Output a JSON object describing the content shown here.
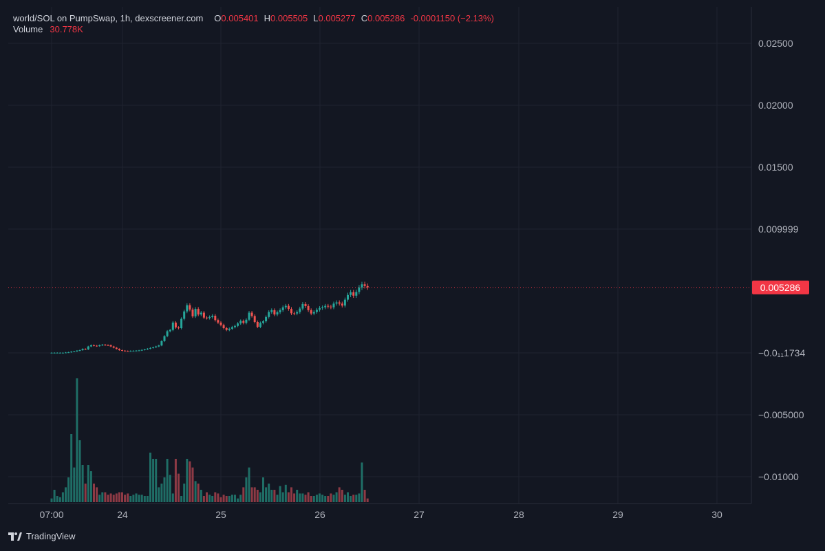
{
  "legend": {
    "symbol": "world/SOL on PumpSwap, 1h, dexscreener.com",
    "o_label": "O",
    "o_value": "0.005401",
    "h_label": "H",
    "h_value": "0.005505",
    "l_label": "L",
    "l_value": "0.005277",
    "c_label": "C",
    "c_value": "0.005286",
    "change": "-0.0001150 (−2.13%)",
    "volume_label": "Volume",
    "volume_value": "30.778K"
  },
  "footer": {
    "brand": "TradingView",
    "brand_icon": "tradingview-logo-icon"
  },
  "colors": {
    "background": "#131722",
    "grid": "#1f2330",
    "up": "#26a69a",
    "down": "#ef5350",
    "up_volume": "#1f6e66",
    "down_volume": "#8e3a45",
    "last_price_badge": "#f23645",
    "axis_text": "#b2b5be"
  },
  "chart_data": {
    "type": "candlestick",
    "pair": "world/SOL",
    "interval": "1h",
    "x_tick_labels": [
      "07:00",
      "24",
      "25",
      "26",
      "27",
      "28",
      "29",
      "30"
    ],
    "y_tick_labels": [
      "0.02500",
      "0.02000",
      "0.01500",
      "0.009999",
      "−0.0₁₁1734",
      "−0.005000",
      "−0.01000"
    ],
    "y_ticks": [
      0.025,
      0.02,
      0.015,
      0.01,
      0.0,
      -0.005,
      -0.01
    ],
    "ylim": [
      -0.0118,
      0.0268
    ],
    "last_price": 0.005286,
    "last_price_label": "0.005286",
    "grid": true,
    "x_start_hour_index_of_first_candle": 0,
    "close": [
      1e-05,
      1e-05,
      1e-05,
      1e-05,
      1e-05,
      3e-05,
      5e-05,
      0.0001,
      0.00012,
      0.00018,
      0.00022,
      0.00032,
      0.00028,
      0.00052,
      0.00062,
      0.00058,
      0.00055,
      0.00062,
      0.00066,
      0.00063,
      0.00062,
      0.00052,
      0.00042,
      0.00032,
      0.00022,
      0.00018,
      0.00015,
      0.00014,
      0.00016,
      0.00017,
      0.00018,
      0.0002,
      0.00024,
      0.00028,
      0.00034,
      0.0004,
      0.00045,
      0.00052,
      0.0006,
      0.00095,
      0.00135,
      0.00175,
      0.00185,
      0.00245,
      0.00205,
      0.002,
      0.00275,
      0.00335,
      0.00385,
      0.0035,
      0.00295,
      0.00355,
      0.0031,
      0.00325,
      0.00285,
      0.00282,
      0.0029,
      0.003,
      0.00265,
      0.00245,
      0.00225,
      0.002,
      0.00185,
      0.00195,
      0.00208,
      0.00218,
      0.00238,
      0.00258,
      0.00242,
      0.00268,
      0.00325,
      0.00298,
      0.0025,
      0.0021,
      0.00242,
      0.00255,
      0.0029,
      0.0033,
      0.00345,
      0.0031,
      0.00328,
      0.00345,
      0.00368,
      0.0038,
      0.00355,
      0.0032,
      0.00318,
      0.0033,
      0.00358,
      0.00395,
      0.00378,
      0.00345,
      0.00318,
      0.0033,
      0.00348,
      0.00362,
      0.00368,
      0.0038,
      0.00374,
      0.00368,
      0.00398,
      0.00408,
      0.00398,
      0.00382,
      0.0043,
      0.00468,
      0.0049,
      0.00462,
      0.00492,
      0.00528,
      0.00554,
      0.0054,
      0.00529
    ],
    "open": [
      1e-05,
      1e-05,
      1e-05,
      1e-05,
      1e-05,
      1e-05,
      3e-05,
      5e-05,
      0.0001,
      0.00012,
      0.00018,
      0.00022,
      0.00032,
      0.00028,
      0.00052,
      0.00062,
      0.00058,
      0.00055,
      0.00062,
      0.00066,
      0.00063,
      0.00062,
      0.00052,
      0.00042,
      0.00032,
      0.00022,
      0.00018,
      0.00015,
      0.00014,
      0.00016,
      0.00017,
      0.00018,
      0.0002,
      0.00024,
      0.00028,
      0.00034,
      0.0004,
      0.00045,
      0.00052,
      0.0006,
      0.00095,
      0.00135,
      0.00175,
      0.00185,
      0.00245,
      0.00205,
      0.002,
      0.00275,
      0.00335,
      0.00385,
      0.0035,
      0.00295,
      0.00355,
      0.0031,
      0.00325,
      0.00285,
      0.00282,
      0.0029,
      0.003,
      0.00265,
      0.00245,
      0.00225,
      0.002,
      0.00185,
      0.00195,
      0.00208,
      0.00218,
      0.00238,
      0.00258,
      0.00242,
      0.00268,
      0.00325,
      0.00298,
      0.0025,
      0.0021,
      0.00242,
      0.00255,
      0.0029,
      0.0033,
      0.00345,
      0.0031,
      0.00328,
      0.00345,
      0.00368,
      0.0038,
      0.00355,
      0.0032,
      0.00318,
      0.0033,
      0.00358,
      0.00395,
      0.00378,
      0.00345,
      0.00318,
      0.0033,
      0.00348,
      0.00362,
      0.00368,
      0.0038,
      0.00374,
      0.00368,
      0.00398,
      0.00408,
      0.00398,
      0.00382,
      0.0043,
      0.00468,
      0.0049,
      0.00462,
      0.00492,
      0.00528,
      0.00554,
      0.0054
    ],
    "volume_relative": [
      0.03,
      0.1,
      0.05,
      0.04,
      0.08,
      0.12,
      0.2,
      0.55,
      0.28,
      1.0,
      0.5,
      0.3,
      0.15,
      0.3,
      0.25,
      0.15,
      0.12,
      0.06,
      0.08,
      0.08,
      0.06,
      0.07,
      0.06,
      0.07,
      0.08,
      0.08,
      0.06,
      0.07,
      0.05,
      0.06,
      0.07,
      0.06,
      0.06,
      0.05,
      0.05,
      0.4,
      0.35,
      0.35,
      0.12,
      0.15,
      0.2,
      0.35,
      0.22,
      0.07,
      0.35,
      0.23,
      0.05,
      0.15,
      0.35,
      0.33,
      0.28,
      0.17,
      0.15,
      0.1,
      0.05,
      0.08,
      0.06,
      0.05,
      0.08,
      0.07,
      0.04,
      0.06,
      0.05,
      0.05,
      0.06,
      0.06,
      0.03,
      0.06,
      0.12,
      0.2,
      0.28,
      0.12,
      0.12,
      0.1,
      0.08,
      0.2,
      0.12,
      0.15,
      0.1,
      0.1,
      0.06,
      0.13,
      0.08,
      0.14,
      0.08,
      0.12,
      0.07,
      0.1,
      0.07,
      0.07,
      0.06,
      0.08,
      0.05,
      0.05,
      0.06,
      0.07,
      0.06,
      0.05,
      0.05,
      0.07,
      0.06,
      0.08,
      0.12,
      0.1,
      0.06,
      0.08,
      0.05,
      0.06,
      0.06,
      0.07,
      0.32,
      0.1,
      0.03
    ]
  }
}
